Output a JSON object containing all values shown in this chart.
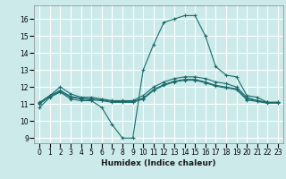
{
  "title": "",
  "xlabel": "Humidex (Indice chaleur)",
  "background_color": "#cceaea",
  "line_color": "#1a6b6b",
  "grid_color": "#ffffff",
  "xlim": [
    -0.5,
    23.5
  ],
  "ylim": [
    8.7,
    16.8
  ],
  "yticks": [
    9,
    10,
    11,
    12,
    13,
    14,
    15,
    16
  ],
  "xticks": [
    0,
    1,
    2,
    3,
    4,
    5,
    6,
    7,
    8,
    9,
    10,
    11,
    12,
    13,
    14,
    15,
    16,
    17,
    18,
    19,
    20,
    21,
    22,
    23
  ],
  "series": [
    {
      "x": [
        0,
        1,
        2,
        3,
        4,
        5,
        6,
        7,
        8,
        9,
        10,
        11,
        12,
        13,
        14,
        15,
        16,
        17,
        18,
        19,
        20,
        21,
        22,
        23
      ],
      "y": [
        10.8,
        11.4,
        11.7,
        11.3,
        11.2,
        11.2,
        10.8,
        9.8,
        9.0,
        9.0,
        13.0,
        14.5,
        15.8,
        16.0,
        16.2,
        16.2,
        15.0,
        13.2,
        12.7,
        12.6,
        11.5,
        11.4,
        11.1,
        11.1
      ]
    },
    {
      "x": [
        0,
        1,
        2,
        3,
        4,
        5,
        6,
        7,
        8,
        9,
        10,
        11,
        12,
        13,
        14,
        15,
        16,
        17,
        18,
        19,
        20,
        21,
        22,
        23
      ],
      "y": [
        11.0,
        11.45,
        11.75,
        11.4,
        11.3,
        11.25,
        11.2,
        11.1,
        11.1,
        11.1,
        11.3,
        11.8,
        12.1,
        12.3,
        12.4,
        12.4,
        12.25,
        12.05,
        11.95,
        11.85,
        11.25,
        11.15,
        11.05,
        11.05
      ]
    },
    {
      "x": [
        0,
        1,
        2,
        3,
        4,
        5,
        6,
        7,
        8,
        9,
        10,
        11,
        12,
        13,
        14,
        15,
        16,
        17,
        18,
        19,
        20,
        21,
        22,
        23
      ],
      "y": [
        11.05,
        11.5,
        11.8,
        11.45,
        11.35,
        11.3,
        11.25,
        11.15,
        11.15,
        11.15,
        11.35,
        11.85,
        12.15,
        12.35,
        12.45,
        12.45,
        12.3,
        12.1,
        12.0,
        11.9,
        11.3,
        11.2,
        11.1,
        11.1
      ]
    },
    {
      "x": [
        0,
        1,
        2,
        3,
        4,
        5,
        6,
        7,
        8,
        9,
        10,
        11,
        12,
        13,
        14,
        15,
        16,
        17,
        18,
        19,
        20,
        21,
        22,
        23
      ],
      "y": [
        11.1,
        11.5,
        12.0,
        11.6,
        11.4,
        11.4,
        11.3,
        11.2,
        11.2,
        11.2,
        11.5,
        12.0,
        12.3,
        12.5,
        12.6,
        12.6,
        12.5,
        12.3,
        12.2,
        12.0,
        11.4,
        11.2,
        11.1,
        11.1
      ]
    }
  ]
}
